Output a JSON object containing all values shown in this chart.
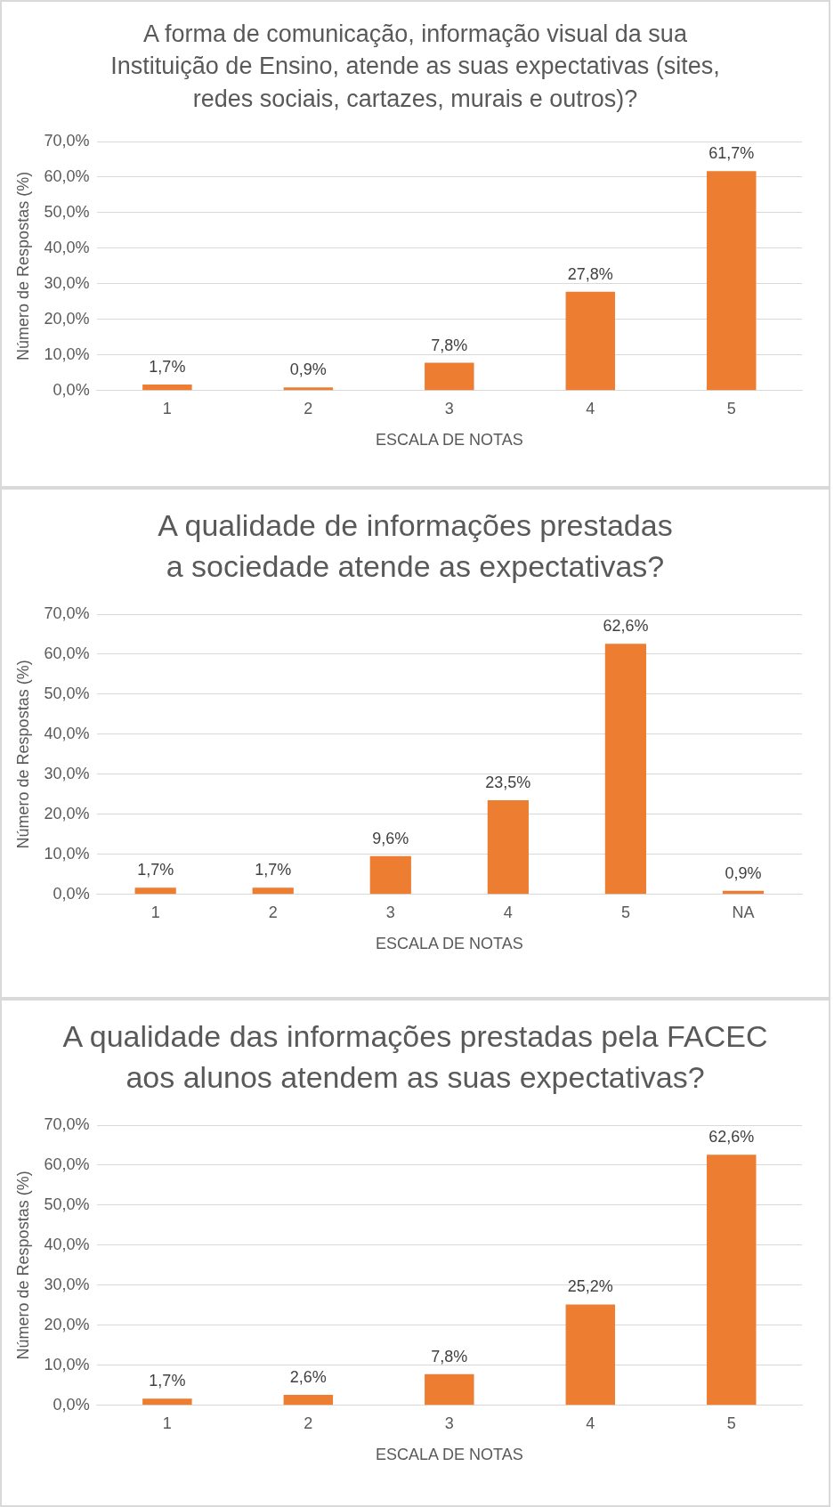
{
  "chart_data": [
    {
      "type": "bar",
      "title": "A forma de comunicação, informação visual da sua Instituição de Ensino, atende as suas expectativas (sites, redes sociais, cartazes, murais e outros)?",
      "xlabel": "ESCALA DE NOTAS",
      "ylabel": "Número de Respostas (%)",
      "categories": [
        "1",
        "2",
        "3",
        "4",
        "5"
      ],
      "values": [
        1.7,
        0.9,
        7.8,
        27.8,
        61.7
      ],
      "value_labels": [
        "1,7%",
        "0,9%",
        "7,8%",
        "27,8%",
        "61,7%"
      ],
      "color": "#ed7d31",
      "ylim": [
        0,
        70
      ],
      "yticks": [
        {
          "value": 0,
          "label": "0,0%"
        },
        {
          "value": 10,
          "label": "10,0%"
        },
        {
          "value": 20,
          "label": "20,0%"
        },
        {
          "value": 30,
          "label": "30,0%"
        },
        {
          "value": 40,
          "label": "40,0%"
        },
        {
          "value": 50,
          "label": "50,0%"
        },
        {
          "value": 60,
          "label": "60,0%"
        },
        {
          "value": 70,
          "label": "70,0%"
        }
      ],
      "grid": "y",
      "legend": false
    },
    {
      "type": "bar",
      "title": "A qualidade de informações prestadas a sociedade atende as expectativas?",
      "xlabel": "ESCALA DE NOTAS",
      "ylabel": "Número de Respostas (%)",
      "categories": [
        "1",
        "2",
        "3",
        "4",
        "5",
        "NA"
      ],
      "values": [
        1.7,
        1.7,
        9.6,
        23.5,
        62.6,
        0.9
      ],
      "value_labels": [
        "1,7%",
        "1,7%",
        "9,6%",
        "23,5%",
        "62,6%",
        "0,9%"
      ],
      "color": "#ed7d31",
      "ylim": [
        0,
        70
      ],
      "yticks": [
        {
          "value": 0,
          "label": "0,0%"
        },
        {
          "value": 10,
          "label": "10,0%"
        },
        {
          "value": 20,
          "label": "20,0%"
        },
        {
          "value": 30,
          "label": "30,0%"
        },
        {
          "value": 40,
          "label": "40,0%"
        },
        {
          "value": 50,
          "label": "50,0%"
        },
        {
          "value": 60,
          "label": "60,0%"
        },
        {
          "value": 70,
          "label": "70,0%"
        }
      ],
      "grid": "y",
      "legend": false
    },
    {
      "type": "bar",
      "title": "A qualidade das informações prestadas pela FACEC aos alunos atendem as suas expectativas?",
      "xlabel": "ESCALA DE NOTAS",
      "ylabel": "Número de Respostas (%)",
      "categories": [
        "1",
        "2",
        "3",
        "4",
        "5"
      ],
      "values": [
        1.7,
        2.6,
        7.8,
        25.2,
        62.6
      ],
      "value_labels": [
        "1,7%",
        "2,6%",
        "7,8%",
        "25,2%",
        "62,6%"
      ],
      "color": "#ed7d31",
      "ylim": [
        0,
        70
      ],
      "yticks": [
        {
          "value": 0,
          "label": "0,0%"
        },
        {
          "value": 10,
          "label": "10,0%"
        },
        {
          "value": 20,
          "label": "20,0%"
        },
        {
          "value": 30,
          "label": "30,0%"
        },
        {
          "value": 40,
          "label": "40,0%"
        },
        {
          "value": 50,
          "label": "50,0%"
        },
        {
          "value": 60,
          "label": "60,0%"
        },
        {
          "value": 70,
          "label": "70,0%"
        }
      ],
      "grid": "y",
      "legend": false
    }
  ]
}
